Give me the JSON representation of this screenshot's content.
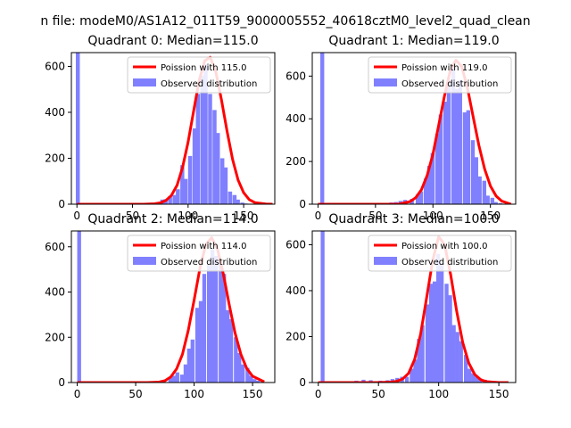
{
  "figure": {
    "suptitle": "n file: modeM0/AS1A12_011T59_9000005552_40618cztM0_level2_quad_clean"
  },
  "colors": {
    "hist": "#8080ff",
    "poisson": "#ff0000",
    "axis": "#000000"
  },
  "chart_data": [
    {
      "type": "bar",
      "title": "Quadrant 0: Median=115.0",
      "xlim": [
        -5,
        178
      ],
      "ylim": [
        0,
        660
      ],
      "xticks": [
        0,
        50,
        100,
        150
      ],
      "yticks": [
        0,
        200,
        400,
        600
      ],
      "legend": [
        "Poission with 115.0",
        "Observed distribution"
      ],
      "legend_position": "upper right",
      "median": 115,
      "hist": {
        "bin_width": 3.6,
        "bars": [
          [
            -1,
            660
          ],
          [
            2,
            3
          ],
          [
            42,
            2
          ],
          [
            60,
            3
          ],
          [
            64,
            5
          ],
          [
            71,
            8
          ],
          [
            75,
            20
          ],
          [
            78,
            22
          ],
          [
            82,
            35
          ],
          [
            86,
            40
          ],
          [
            89,
            65
          ],
          [
            93,
            170
          ],
          [
            96,
            110
          ],
          [
            100,
            210
          ],
          [
            104,
            330
          ],
          [
            107,
            480
          ],
          [
            111,
            560
          ],
          [
            114,
            610
          ],
          [
            118,
            480
          ],
          [
            122,
            410
          ],
          [
            125,
            310
          ],
          [
            129,
            200
          ],
          [
            132,
            160
          ],
          [
            136,
            55
          ],
          [
            140,
            40
          ],
          [
            143,
            20
          ],
          [
            147,
            7
          ],
          [
            150,
            3
          ],
          [
            154,
            2
          ]
        ]
      },
      "poisson_x": [
        0,
        60,
        70,
        75,
        80,
        85,
        90,
        95,
        100,
        105,
        110,
        115,
        120,
        125,
        130,
        135,
        140,
        145,
        150,
        155,
        160,
        170,
        176
      ],
      "poisson_y": [
        0,
        0,
        2,
        6,
        16,
        38,
        82,
        160,
        270,
        405,
        540,
        625,
        640,
        575,
        455,
        320,
        195,
        105,
        50,
        20,
        7,
        1,
        0
      ]
    },
    {
      "type": "bar",
      "title": "Quadrant 1: Median=119.0",
      "xlim": [
        -5,
        172
      ],
      "ylim": [
        0,
        710
      ],
      "xticks": [
        0,
        50,
        100,
        150
      ],
      "yticks": [
        0,
        200,
        400,
        600
      ],
      "legend": [
        "Poission with 119.0",
        "Observed distribution"
      ],
      "legend_position": "upper right",
      "median": 119,
      "hist": {
        "bin_width": 3.4,
        "bars": [
          [
            2,
            710
          ],
          [
            38,
            3
          ],
          [
            45,
            5
          ],
          [
            52,
            4
          ],
          [
            57,
            6
          ],
          [
            62,
            8
          ],
          [
            66,
            10
          ],
          [
            70,
            15
          ],
          [
            74,
            20
          ],
          [
            80,
            25
          ],
          [
            85,
            45
          ],
          [
            88,
            60
          ],
          [
            92,
            120
          ],
          [
            95,
            180
          ],
          [
            98,
            240
          ],
          [
            102,
            330
          ],
          [
            105,
            420
          ],
          [
            109,
            480
          ],
          [
            112,
            580
          ],
          [
            116,
            650
          ],
          [
            119,
            540
          ],
          [
            122,
            580
          ],
          [
            126,
            430
          ],
          [
            129,
            440
          ],
          [
            133,
            300
          ],
          [
            136,
            220
          ],
          [
            139,
            130
          ],
          [
            143,
            110
          ],
          [
            146,
            40
          ],
          [
            150,
            30
          ],
          [
            153,
            10
          ],
          [
            157,
            5
          ]
        ]
      },
      "poisson_x": [
        0,
        70,
        80,
        85,
        90,
        95,
        100,
        105,
        110,
        115,
        120,
        125,
        130,
        135,
        140,
        145,
        150,
        155,
        160,
        168
      ],
      "poisson_y": [
        0,
        0,
        12,
        30,
        68,
        135,
        235,
        370,
        505,
        625,
        675,
        645,
        545,
        410,
        275,
        165,
        85,
        38,
        14,
        0
      ]
    },
    {
      "type": "bar",
      "title": "Quadrant 2: Median=114.0",
      "xlim": [
        -5,
        169
      ],
      "ylim": [
        0,
        670
      ],
      "xticks": [
        0,
        50,
        100,
        150
      ],
      "yticks": [
        0,
        200,
        400,
        600
      ],
      "legend": [
        "Poission with 114.0",
        "Observed distribution"
      ],
      "legend_position": "upper right",
      "median": 114,
      "hist": {
        "bin_width": 3.3,
        "bars": [
          [
            0,
            670
          ],
          [
            48,
            2
          ],
          [
            60,
            3
          ],
          [
            65,
            5
          ],
          [
            72,
            8
          ],
          [
            78,
            20
          ],
          [
            81,
            30
          ],
          [
            84,
            45
          ],
          [
            88,
            35
          ],
          [
            91,
            80
          ],
          [
            94,
            150
          ],
          [
            97,
            190
          ],
          [
            101,
            330
          ],
          [
            104,
            360
          ],
          [
            107,
            480
          ],
          [
            111,
            520
          ],
          [
            114,
            590
          ],
          [
            117,
            560
          ],
          [
            121,
            530
          ],
          [
            124,
            480
          ],
          [
            127,
            320
          ],
          [
            130,
            280
          ],
          [
            134,
            200
          ],
          [
            137,
            130
          ],
          [
            140,
            80
          ],
          [
            144,
            65
          ],
          [
            147,
            30
          ],
          [
            150,
            15
          ],
          [
            153,
            8
          ]
        ]
      },
      "poisson_x": [
        0,
        60,
        70,
        75,
        80,
        85,
        90,
        95,
        100,
        105,
        110,
        115,
        120,
        125,
        130,
        135,
        140,
        145,
        150,
        160
      ],
      "poisson_y": [
        0,
        0,
        2,
        8,
        25,
        60,
        125,
        230,
        365,
        505,
        610,
        640,
        590,
        480,
        345,
        220,
        125,
        62,
        28,
        3
      ]
    },
    {
      "type": "bar",
      "title": "Quadrant 3: Median=100.0",
      "xlim": [
        -5,
        164
      ],
      "ylim": [
        0,
        660
      ],
      "xticks": [
        0,
        50,
        100,
        150
      ],
      "yticks": [
        0,
        200,
        400,
        600
      ],
      "legend": [
        "Poission with 100.0",
        "Observed distribution"
      ],
      "legend_position": "upper right",
      "median": 100,
      "hist": {
        "bin_width": 3.2,
        "bars": [
          [
            2,
            660
          ],
          [
            30,
            8
          ],
          [
            36,
            12
          ],
          [
            42,
            10
          ],
          [
            50,
            8
          ],
          [
            56,
            10
          ],
          [
            60,
            15
          ],
          [
            64,
            20
          ],
          [
            68,
            25
          ],
          [
            72,
            25
          ],
          [
            76,
            60
          ],
          [
            79,
            100
          ],
          [
            82,
            190
          ],
          [
            85,
            250
          ],
          [
            89,
            340
          ],
          [
            92,
            430
          ],
          [
            95,
            440
          ],
          [
            98,
            560
          ],
          [
            101,
            520
          ],
          [
            105,
            430
          ],
          [
            108,
            380
          ],
          [
            111,
            250
          ],
          [
            114,
            220
          ],
          [
            117,
            180
          ],
          [
            121,
            120
          ],
          [
            124,
            60
          ],
          [
            127,
            40
          ],
          [
            130,
            25
          ],
          [
            133,
            18
          ],
          [
            137,
            12
          ],
          [
            140,
            8
          ],
          [
            143,
            5
          ]
        ]
      },
      "poisson_x": [
        0,
        50,
        60,
        65,
        70,
        75,
        80,
        85,
        90,
        95,
        100,
        105,
        110,
        115,
        120,
        125,
        130,
        135,
        140,
        150,
        158
      ],
      "poisson_y": [
        0,
        0,
        2,
        5,
        15,
        40,
        100,
        210,
        370,
        530,
        635,
        600,
        470,
        310,
        175,
        85,
        35,
        12,
        4,
        0,
        0
      ]
    }
  ]
}
